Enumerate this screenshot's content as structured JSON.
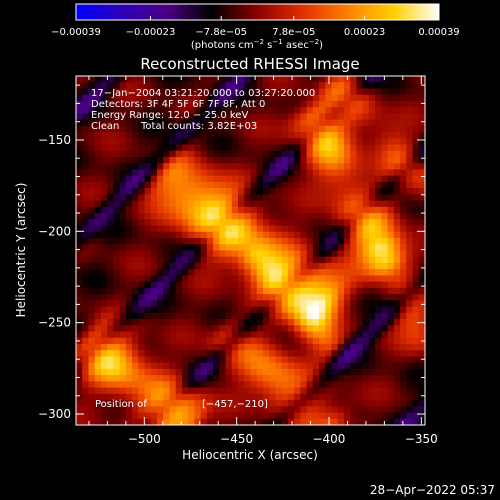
{
  "chart_data": {
    "type": "heatmap",
    "title": "Reconstructed RHESSI Image",
    "xlabel": "Heliocentric X (arcsec)",
    "ylabel": "Heliocentric Y (arcsec)",
    "xlim": [
      -537,
      -348
    ],
    "ylim": [
      -306,
      -115
    ],
    "x_ticks": [
      {
        "value": -500,
        "label": "−500"
      },
      {
        "value": -450,
        "label": "−450"
      },
      {
        "value": -400,
        "label": "−400"
      },
      {
        "value": -350,
        "label": "−350"
      }
    ],
    "y_ticks": [
      {
        "value": -150,
        "label": "−150"
      },
      {
        "value": -200,
        "label": "−200"
      },
      {
        "value": -250,
        "label": "−250"
      },
      {
        "value": -300,
        "label": "−300"
      }
    ],
    "colorbar": {
      "min": -0.00039,
      "max": 0.00039,
      "ticks": [
        {
          "value": -0.00039,
          "label": "−0.00039"
        },
        {
          "value": -0.00023,
          "label": "−0.00023"
        },
        {
          "value": -7.8e-05,
          "label": "−7.8e−05"
        },
        {
          "value": 7.8e-05,
          "label": "7.8e−05"
        },
        {
          "value": 0.00023,
          "label": "0.00023"
        },
        {
          "value": 0.00039,
          "label": "0.00039"
        }
      ],
      "units_prefix": "(photons cm",
      "units_exp1": "−2",
      "units_mid": " s",
      "units_exp2": "−1",
      "units_mid2": " asec",
      "units_exp3": "−2",
      "units_suffix": ")"
    },
    "annotations": {
      "line1": "17−Jan−2004 03:21:20.000 to 03:27:20.000",
      "line2": "Detectors: 3F 4F 5F 6F 7F 8F, Att 0",
      "line3": "Energy Range: 12.0 − 25.0 keV",
      "line4_a": "Clean",
      "line4_b": "Total counts: 3.82E+03",
      "position_label": "Position of",
      "position_value": "[−457,−210]"
    },
    "timestamp": "28−Apr−2022 05:37",
    "colormap_stops": [
      "#0000ff",
      "#2d00b8",
      "#4b0082",
      "#000000",
      "#8b0000",
      "#e03000",
      "#ff8000",
      "#ffd000",
      "#ffffff"
    ],
    "ridges": [
      {
        "x_start": -485,
        "y_start": -172,
        "x_end": -405,
        "y_end": -238,
        "width": 12,
        "peak": 0.00039
      },
      {
        "x_start": -408,
        "y_start": -138,
        "x_end": -370,
        "y_end": -215,
        "width": 10,
        "peak": 0.0003
      },
      {
        "x_start": -528,
        "y_start": -262,
        "x_end": -478,
        "y_end": -305,
        "width": 11,
        "peak": 0.00034
      },
      {
        "x_start": -455,
        "y_start": -258,
        "x_end": -400,
        "y_end": -306,
        "width": 10,
        "peak": 0.00025
      },
      {
        "x_start": -440,
        "y_start": -215,
        "x_end": -400,
        "y_end": -262,
        "width": 7,
        "peak": 0.00018
      },
      {
        "x_start": -395,
        "y_start": -120,
        "x_end": -348,
        "y_end": -175,
        "width": 8,
        "peak": 0.00017
      },
      {
        "x_start": -370,
        "y_start": -210,
        "x_end": -348,
        "y_end": -260,
        "width": 8,
        "peak": 0.00016
      }
    ]
  }
}
